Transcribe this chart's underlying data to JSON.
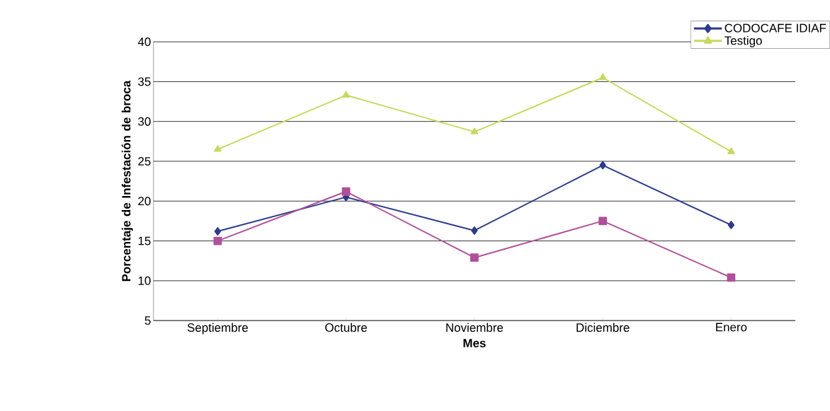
{
  "chart_data": {
    "type": "line",
    "xlabel": "Mes",
    "ylabel": "Porcentaje de Infestación de broca",
    "categories": [
      "Septiembre",
      "Octubre",
      "Noviembre",
      "Diciembre",
      "Enero"
    ],
    "series": [
      {
        "name": "CODOCAFE IDIAF",
        "color": "#2e3a8c",
        "marker": "diamond",
        "values": [
          16.2,
          20.5,
          16.3,
          24.5,
          17.0
        ]
      },
      {
        "color": "#b0509a",
        "marker": "square",
        "values": [
          15.0,
          21.2,
          12.9,
          17.5,
          10.4
        ]
      },
      {
        "name": "Testigo",
        "color": "#c8d860",
        "marker": "triangle",
        "values": [
          26.5,
          33.3,
          28.7,
          35.5,
          26.2
        ]
      }
    ],
    "ylim": [
      5,
      40
    ],
    "yticks": [
      5,
      10,
      15,
      20,
      25,
      30,
      35,
      40
    ],
    "grid": "y",
    "legend": "top right",
    "line_style": "solid"
  }
}
